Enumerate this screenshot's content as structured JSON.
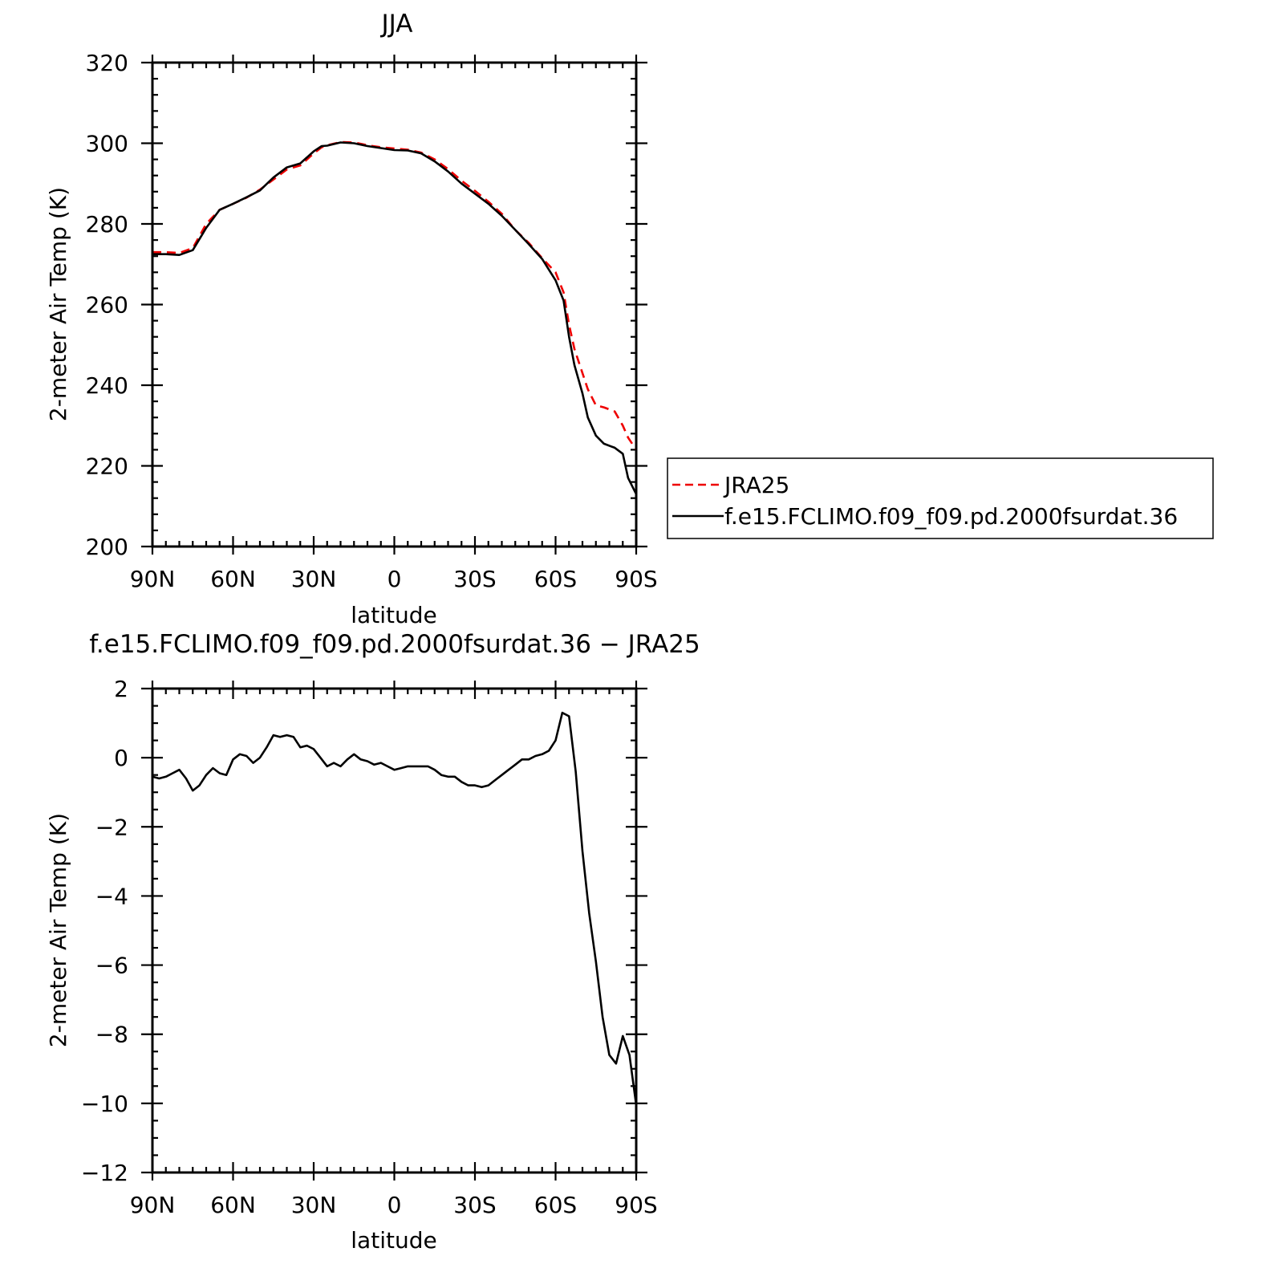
{
  "chart_data": [
    {
      "type": "line",
      "title": "JJA",
      "xlabel": "latitude",
      "ylabel": "2-meter Air Temp (K)",
      "xlim": [
        -90,
        90
      ],
      "ylim": [
        200,
        320
      ],
      "x_ticks": [
        {
          "value": -90,
          "label": "90N"
        },
        {
          "value": -60,
          "label": "60N"
        },
        {
          "value": -30,
          "label": "30N"
        },
        {
          "value": 0,
          "label": "0"
        },
        {
          "value": 30,
          "label": "30S"
        },
        {
          "value": 60,
          "label": "60S"
        },
        {
          "value": 90,
          "label": "90S"
        }
      ],
      "y_ticks": [
        {
          "value": 200,
          "label": "200"
        },
        {
          "value": 220,
          "label": "220"
        },
        {
          "value": 240,
          "label": "240"
        },
        {
          "value": 260,
          "label": "260"
        },
        {
          "value": 280,
          "label": "280"
        },
        {
          "value": 300,
          "label": "300"
        },
        {
          "value": 320,
          "label": "320"
        }
      ],
      "legend_position": "right",
      "series": [
        {
          "name": "JRA25",
          "color": "#ee0000",
          "dash": "dashed",
          "x": [
            -90,
            -85,
            -80,
            -75,
            -70,
            -65,
            -60,
            -55,
            -50,
            -45,
            -40,
            -35,
            -30,
            -27,
            -25,
            -20,
            -15,
            -10,
            -5,
            0,
            5,
            10,
            15,
            20,
            25,
            30,
            35,
            40,
            45,
            50,
            55,
            60,
            63,
            65,
            67,
            70,
            72,
            75,
            78,
            82,
            85,
            87,
            90
          ],
          "y": [
            273,
            273,
            272.8,
            274,
            280,
            283.5,
            285,
            286.5,
            288.5,
            291,
            293.5,
            294.5,
            297.5,
            299,
            299.5,
            300.3,
            300.2,
            299.5,
            299,
            298.7,
            298.4,
            297.7,
            296,
            293.6,
            290.7,
            288.2,
            285.5,
            282.5,
            278.5,
            275.3,
            271.5,
            268,
            263,
            255,
            249,
            243,
            239,
            235,
            234.5,
            233.5,
            230,
            227,
            224
          ]
        },
        {
          "name": "f.e15.FCLIMO.f09_f09.pd.2000fsurdat.36",
          "color": "#000000",
          "dash": "solid",
          "x": [
            -90,
            -85,
            -80,
            -75,
            -70,
            -65,
            -60,
            -55,
            -50,
            -45,
            -40,
            -35,
            -30,
            -27,
            -25,
            -20,
            -15,
            -10,
            -5,
            0,
            5,
            10,
            15,
            20,
            25,
            30,
            35,
            40,
            45,
            50,
            55,
            60,
            63,
            65,
            67,
            70,
            72,
            75,
            78,
            82,
            85,
            87,
            90
          ],
          "y": [
            272.5,
            272.5,
            272.3,
            273.5,
            279,
            283.5,
            285,
            286.6,
            288.3,
            291.5,
            294,
            295,
            298,
            299.3,
            299.4,
            300.2,
            300,
            299.3,
            298.8,
            298.3,
            298.2,
            297.5,
            295.5,
            293,
            290,
            287.5,
            285,
            282,
            278.5,
            275,
            271.3,
            266,
            261,
            252,
            245,
            238,
            232,
            227.5,
            225.5,
            224.5,
            223,
            217,
            213
          ]
        }
      ]
    },
    {
      "type": "line",
      "title": "f.e15.FCLIMO.f09_f09.pd.2000fsurdat.36 − JRA25",
      "xlabel": "latitude",
      "ylabel": "2-meter Air Temp (K)",
      "xlim": [
        -90,
        90
      ],
      "ylim": [
        -12,
        2
      ],
      "x_ticks": [
        {
          "value": -90,
          "label": "90N"
        },
        {
          "value": -60,
          "label": "60N"
        },
        {
          "value": -30,
          "label": "30N"
        },
        {
          "value": 0,
          "label": "0"
        },
        {
          "value": 30,
          "label": "30S"
        },
        {
          "value": 60,
          "label": "60S"
        },
        {
          "value": 90,
          "label": "90S"
        }
      ],
      "y_ticks": [
        {
          "value": -12,
          "label": "−12"
        },
        {
          "value": -10,
          "label": "−10"
        },
        {
          "value": -8,
          "label": "−8"
        },
        {
          "value": -6,
          "label": "−6"
        },
        {
          "value": -4,
          "label": "−4"
        },
        {
          "value": -2,
          "label": "−2"
        },
        {
          "value": 0,
          "label": "0"
        },
        {
          "value": 2,
          "label": "2"
        }
      ],
      "series": [
        {
          "color": "#000000",
          "dash": "solid",
          "x": [
            -90,
            -87.5,
            -85,
            -82.5,
            -80,
            -77.5,
            -75,
            -72.5,
            -70,
            -67.5,
            -65,
            -62.5,
            -60,
            -57.5,
            -55,
            -52.5,
            -50,
            -47.5,
            -45,
            -42.5,
            -40,
            -37.5,
            -35,
            -32.5,
            -30,
            -27.5,
            -25,
            -22.5,
            -20,
            -17.5,
            -15,
            -12.5,
            -10,
            -7.5,
            -5,
            -2.5,
            0,
            2.5,
            5,
            7.5,
            10,
            12.5,
            15,
            17.5,
            20,
            22.5,
            25,
            27.5,
            30,
            32.5,
            35,
            37.5,
            40,
            42.5,
            45,
            47.5,
            50,
            52.5,
            55,
            57.5,
            60,
            62.5,
            65,
            67.5,
            70,
            72.5,
            75,
            77.5,
            80,
            82.5,
            85,
            87.5,
            90
          ],
          "y": [
            -0.55,
            -0.6,
            -0.55,
            -0.45,
            -0.35,
            -0.6,
            -0.95,
            -0.8,
            -0.5,
            -0.3,
            -0.45,
            -0.5,
            -0.05,
            0.1,
            0.05,
            -0.15,
            0.0,
            0.3,
            0.65,
            0.6,
            0.65,
            0.6,
            0.3,
            0.35,
            0.25,
            0.0,
            -0.25,
            -0.15,
            -0.25,
            -0.05,
            0.1,
            -0.05,
            -0.1,
            -0.2,
            -0.15,
            -0.25,
            -0.35,
            -0.3,
            -0.25,
            -0.25,
            -0.25,
            -0.25,
            -0.35,
            -0.5,
            -0.55,
            -0.55,
            -0.7,
            -0.8,
            -0.8,
            -0.85,
            -0.8,
            -0.65,
            -0.5,
            -0.35,
            -0.2,
            -0.05,
            -0.05,
            0.05,
            0.1,
            0.2,
            0.5,
            1.3,
            1.2,
            -0.4,
            -2.7,
            -4.5,
            -5.9,
            -7.5,
            -8.6,
            -8.85,
            -8.05,
            -8.6,
            -10.05
          ]
        }
      ]
    }
  ]
}
